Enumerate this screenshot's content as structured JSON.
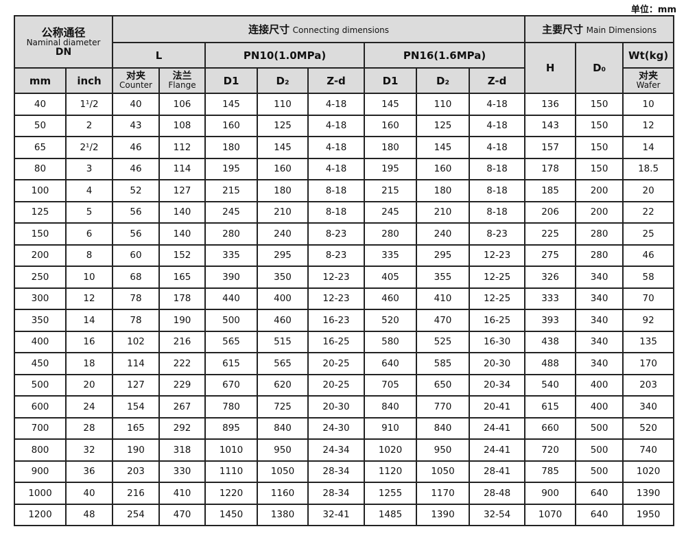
{
  "unit_label": "单位：mm",
  "header": {
    "dn_cn": "公称通径",
    "dn_en": "Naminal diameter",
    "dn": "DN",
    "connecting_cn": "连接尺寸",
    "connecting_en": "Connecting dimensions",
    "main_cn": "主要尺寸",
    "main_en": "Main Dimensions",
    "L": "L",
    "pn10": "PN10(1.0MPa)",
    "pn16": "PN16(1.6MPa)",
    "H": "H",
    "D0": "D₀",
    "wt": "Wt(kg)",
    "mm": "mm",
    "inch": "inch",
    "counter_cn": "对夹",
    "counter_en": "Counter",
    "flange_cn": "法兰",
    "flange_en": "Flange",
    "D1": "D1",
    "D2": "D₂",
    "Zd": "Z-d",
    "wafer_cn": "对夹",
    "wafer_en": "Wafer"
  },
  "rows": [
    [
      "40",
      "1¹/2",
      "40",
      "106",
      "145",
      "110",
      "4-18",
      "145",
      "110",
      "4-18",
      "136",
      "150",
      "10"
    ],
    [
      "50",
      "2",
      "43",
      "108",
      "160",
      "125",
      "4-18",
      "160",
      "125",
      "4-18",
      "143",
      "150",
      "12"
    ],
    [
      "65",
      "2¹/2",
      "46",
      "112",
      "180",
      "145",
      "4-18",
      "180",
      "145",
      "4-18",
      "157",
      "150",
      "14"
    ],
    [
      "80",
      "3",
      "46",
      "114",
      "195",
      "160",
      "4-18",
      "195",
      "160",
      "8-18",
      "178",
      "150",
      "18.5"
    ],
    [
      "100",
      "4",
      "52",
      "127",
      "215",
      "180",
      "8-18",
      "215",
      "180",
      "8-18",
      "185",
      "200",
      "20"
    ],
    [
      "125",
      "5",
      "56",
      "140",
      "245",
      "210",
      "8-18",
      "245",
      "210",
      "8-18",
      "206",
      "200",
      "22"
    ],
    [
      "150",
      "6",
      "56",
      "140",
      "280",
      "240",
      "8-23",
      "280",
      "240",
      "8-23",
      "225",
      "280",
      "25"
    ],
    [
      "200",
      "8",
      "60",
      "152",
      "335",
      "295",
      "8-23",
      "335",
      "295",
      "12-23",
      "275",
      "280",
      "46"
    ],
    [
      "250",
      "10",
      "68",
      "165",
      "390",
      "350",
      "12-23",
      "405",
      "355",
      "12-25",
      "326",
      "340",
      "58"
    ],
    [
      "300",
      "12",
      "78",
      "178",
      "440",
      "400",
      "12-23",
      "460",
      "410",
      "12-25",
      "333",
      "340",
      "70"
    ],
    [
      "350",
      "14",
      "78",
      "190",
      "500",
      "460",
      "16-23",
      "520",
      "470",
      "16-25",
      "393",
      "340",
      "92"
    ],
    [
      "400",
      "16",
      "102",
      "216",
      "565",
      "515",
      "16-25",
      "580",
      "525",
      "16-30",
      "438",
      "340",
      "135"
    ],
    [
      "450",
      "18",
      "114",
      "222",
      "615",
      "565",
      "20-25",
      "640",
      "585",
      "20-30",
      "488",
      "340",
      "170"
    ],
    [
      "500",
      "20",
      "127",
      "229",
      "670",
      "620",
      "20-25",
      "705",
      "650",
      "20-34",
      "540",
      "400",
      "203"
    ],
    [
      "600",
      "24",
      "154",
      "267",
      "780",
      "725",
      "20-30",
      "840",
      "770",
      "20-41",
      "615",
      "400",
      "340"
    ],
    [
      "700",
      "28",
      "165",
      "292",
      "895",
      "840",
      "24-30",
      "910",
      "840",
      "24-41",
      "660",
      "500",
      "520"
    ],
    [
      "800",
      "32",
      "190",
      "318",
      "1010",
      "950",
      "24-34",
      "1020",
      "950",
      "24-41",
      "720",
      "500",
      "740"
    ],
    [
      "900",
      "36",
      "203",
      "330",
      "1110",
      "1050",
      "28-34",
      "1120",
      "1050",
      "28-41",
      "785",
      "500",
      "1020"
    ],
    [
      "1000",
      "40",
      "216",
      "410",
      "1220",
      "1160",
      "28-34",
      "1255",
      "1170",
      "28-48",
      "900",
      "640",
      "1390"
    ],
    [
      "1200",
      "48",
      "254",
      "470",
      "1450",
      "1380",
      "32-41",
      "1485",
      "1390",
      "32-54",
      "1070",
      "640",
      "1950"
    ]
  ]
}
